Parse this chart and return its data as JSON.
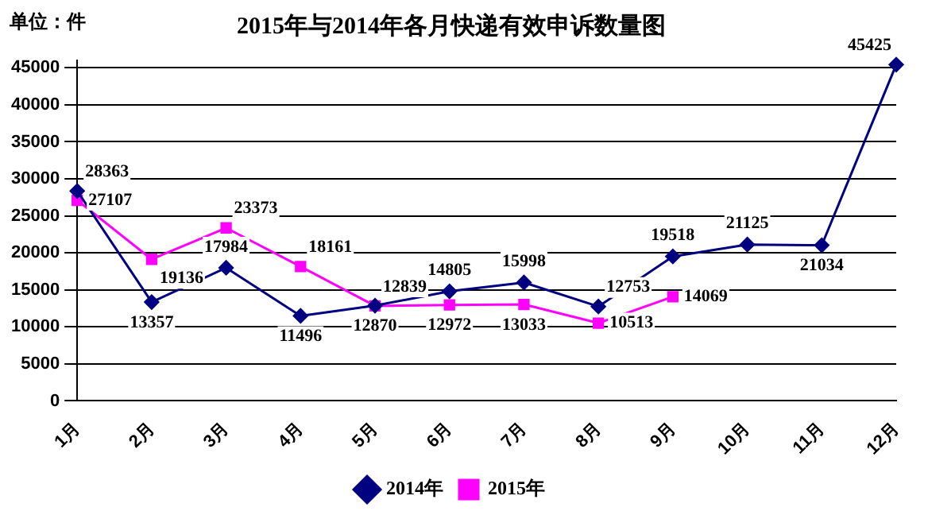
{
  "chart_data": {
    "type": "line",
    "title": "2015年与2014年各月快递有效申诉数量图",
    "ylabel": "单位：件",
    "categories": [
      "1月",
      "2月",
      "3月",
      "4月",
      "5月",
      "6月",
      "7月",
      "8月",
      "9月",
      "10月",
      "11月",
      "12月"
    ],
    "series": [
      {
        "name": "2014年",
        "color": "#000080",
        "marker": "diamond",
        "values": [
          28363,
          13357,
          17984,
          11496,
          12870,
          14805,
          15998,
          12753,
          19518,
          21125,
          21034,
          45425
        ]
      },
      {
        "name": "2015年",
        "color": "#ff00ff",
        "marker": "square",
        "values": [
          27107,
          19136,
          23373,
          18161,
          12839,
          12972,
          13033,
          10513,
          14069,
          null,
          null,
          null
        ]
      }
    ],
    "ylim": [
      0,
      46000
    ],
    "yticks": [
      0,
      5000,
      10000,
      15000,
      20000,
      25000,
      30000,
      35000,
      40000,
      45000
    ],
    "grid": "y",
    "legend": "bottom",
    "data_labels": true,
    "line_style": "solid"
  }
}
